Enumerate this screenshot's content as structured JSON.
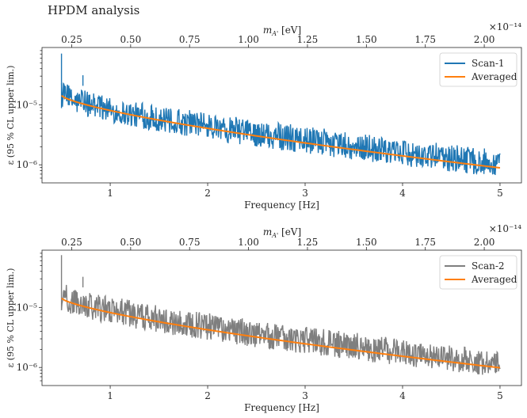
{
  "page_title": "HPDM analysis",
  "chart_data": [
    {
      "type": "line",
      "panel": "top",
      "xlabel": "Frequency [Hz]",
      "ylabel": "ε (95 % CL upper lim.)",
      "yscale": "log",
      "xlim": [
        0.3,
        5.22
      ],
      "ylim": [
        5e-07,
        9e-05
      ],
      "x_ticks": [
        1,
        2,
        3,
        4,
        5
      ],
      "x_tick_labels": [
        "1",
        "2",
        "3",
        "4",
        "5"
      ],
      "y_ticks": [
        1e-05,
        1e-06
      ],
      "y_tick_labels": [
        "10⁻⁵",
        "10⁻⁶"
      ],
      "top_axis": {
        "label": "m_{A'} [eV]",
        "ticks": [
          "0.25",
          "0.50",
          "0.75",
          "1.00",
          "1.25",
          "1.50",
          "1.75",
          "2.00"
        ],
        "multiplier": "×10⁻¹⁴"
      },
      "legend_location": "top-right",
      "series": [
        {
          "name": "Scan-1",
          "color": "#1f77b4",
          "kind": "noisy-band",
          "x_range": [
            0.5,
            5.0
          ],
          "median_endpoints": [
            1.5e-05,
            1e-06
          ],
          "lower_endpoints": [
            8.8e-06,
            6.2e-07
          ],
          "upper_endpoints": [
            2.3e-05,
            1.6e-06
          ]
        },
        {
          "name": "Averaged",
          "color": "#ff7f0e",
          "kind": "smooth",
          "x_range": [
            0.5,
            5.0
          ],
          "endpoints": [
            1.42e-05,
            8.9e-07
          ]
        }
      ]
    },
    {
      "type": "line",
      "panel": "bottom",
      "xlabel": "Frequency [Hz]",
      "ylabel": "ε (95 % CL upper lim.)",
      "yscale": "log",
      "xlim": [
        0.3,
        5.22
      ],
      "ylim": [
        5e-07,
        9e-05
      ],
      "x_ticks": [
        1,
        2,
        3,
        4,
        5
      ],
      "x_tick_labels": [
        "1",
        "2",
        "3",
        "4",
        "5"
      ],
      "y_ticks": [
        1e-05,
        1e-06
      ],
      "y_tick_labels": [
        "10⁻⁵",
        "10⁻⁶"
      ],
      "top_axis": {
        "label": "m_{A'} [eV]",
        "ticks": [
          "0.25",
          "0.50",
          "0.75",
          "1.00",
          "1.25",
          "1.50",
          "1.75",
          "2.00"
        ],
        "multiplier": "×10⁻¹⁴"
      },
      "legend_location": "top-right",
      "series": [
        {
          "name": "Scan-2",
          "color": "#7f7f7f",
          "kind": "noisy-band",
          "x_range": [
            0.5,
            5.0
          ],
          "median_endpoints": [
            1.5e-05,
            1.1e-06
          ],
          "lower_endpoints": [
            9e-06,
            7e-07
          ],
          "upper_endpoints": [
            2.4e-05,
            1.8e-06
          ]
        },
        {
          "name": "Averaged",
          "color": "#ff7f0e",
          "kind": "smooth",
          "x_range": [
            0.5,
            5.0
          ],
          "endpoints": [
            1.42e-05,
            9.9e-07
          ]
        }
      ]
    }
  ]
}
